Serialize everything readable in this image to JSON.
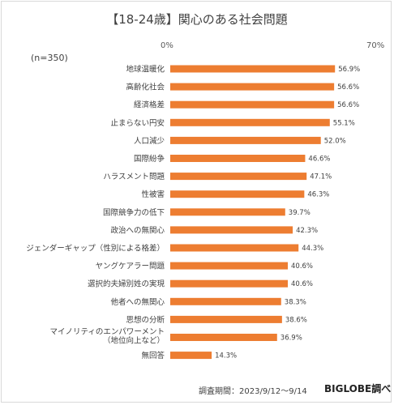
{
  "title": "【18-24歳】関心のある社会問題",
  "n_label": "(n=350)",
  "axis_min_label": "0%",
  "axis_max_label": "70%",
  "source": "調査期間：2023/9/12～9/14",
  "brand": "BIGLOBE調べ",
  "bar_color": "#ed7d31",
  "chart_data": {
    "type": "bar",
    "orientation": "horizontal",
    "title": "【18-24歳】関心のある社会問題",
    "xlim": [
      0,
      70
    ],
    "unit": "%",
    "grid": false,
    "categories": [
      "地球温暖化",
      "高齢化社会",
      "経済格差",
      "止まらない円安",
      "人口減少",
      "国際紛争",
      "ハラスメント問題",
      "性被害",
      "国際競争力の低下",
      "政治への無関心",
      "ジェンダーギャップ（性別による格差）",
      "ヤングケアラー問題",
      "選択的夫婦別姓の実現",
      "他者への無関心",
      "思想の分断",
      "マイノリティのエンパワーメント（地位向上など）",
      "無回答"
    ],
    "category_lines": [
      [
        "地球温暖化"
      ],
      [
        "高齢化社会"
      ],
      [
        "経済格差"
      ],
      [
        "止まらない円安"
      ],
      [
        "人口減少"
      ],
      [
        "国際紛争"
      ],
      [
        "ハラスメント問題"
      ],
      [
        "性被害"
      ],
      [
        "国際競争力の低下"
      ],
      [
        "政治への無関心"
      ],
      [
        "ジェンダーギャップ（性別による格差）"
      ],
      [
        "ヤングケアラー問題"
      ],
      [
        "選択的夫婦別姓の実現"
      ],
      [
        "他者への無関心"
      ],
      [
        "思想の分断"
      ],
      [
        "マイノリティのエンパワーメント",
        "（地位向上など）"
      ],
      [
        "無回答"
      ]
    ],
    "values": [
      56.9,
      56.6,
      56.6,
      55.1,
      52.0,
      46.6,
      47.1,
      46.3,
      39.7,
      42.3,
      44.3,
      40.6,
      40.6,
      38.3,
      38.6,
      36.9,
      14.3
    ],
    "value_labels": [
      "56.9%",
      "56.6%",
      "56.6%",
      "55.1%",
      "52.0%",
      "46.6%",
      "47.1%",
      "46.3%",
      "39.7%",
      "42.3%",
      "44.3%",
      "40.6%",
      "40.6%",
      "38.3%",
      "38.6%",
      "36.9%",
      "14.3%"
    ]
  }
}
